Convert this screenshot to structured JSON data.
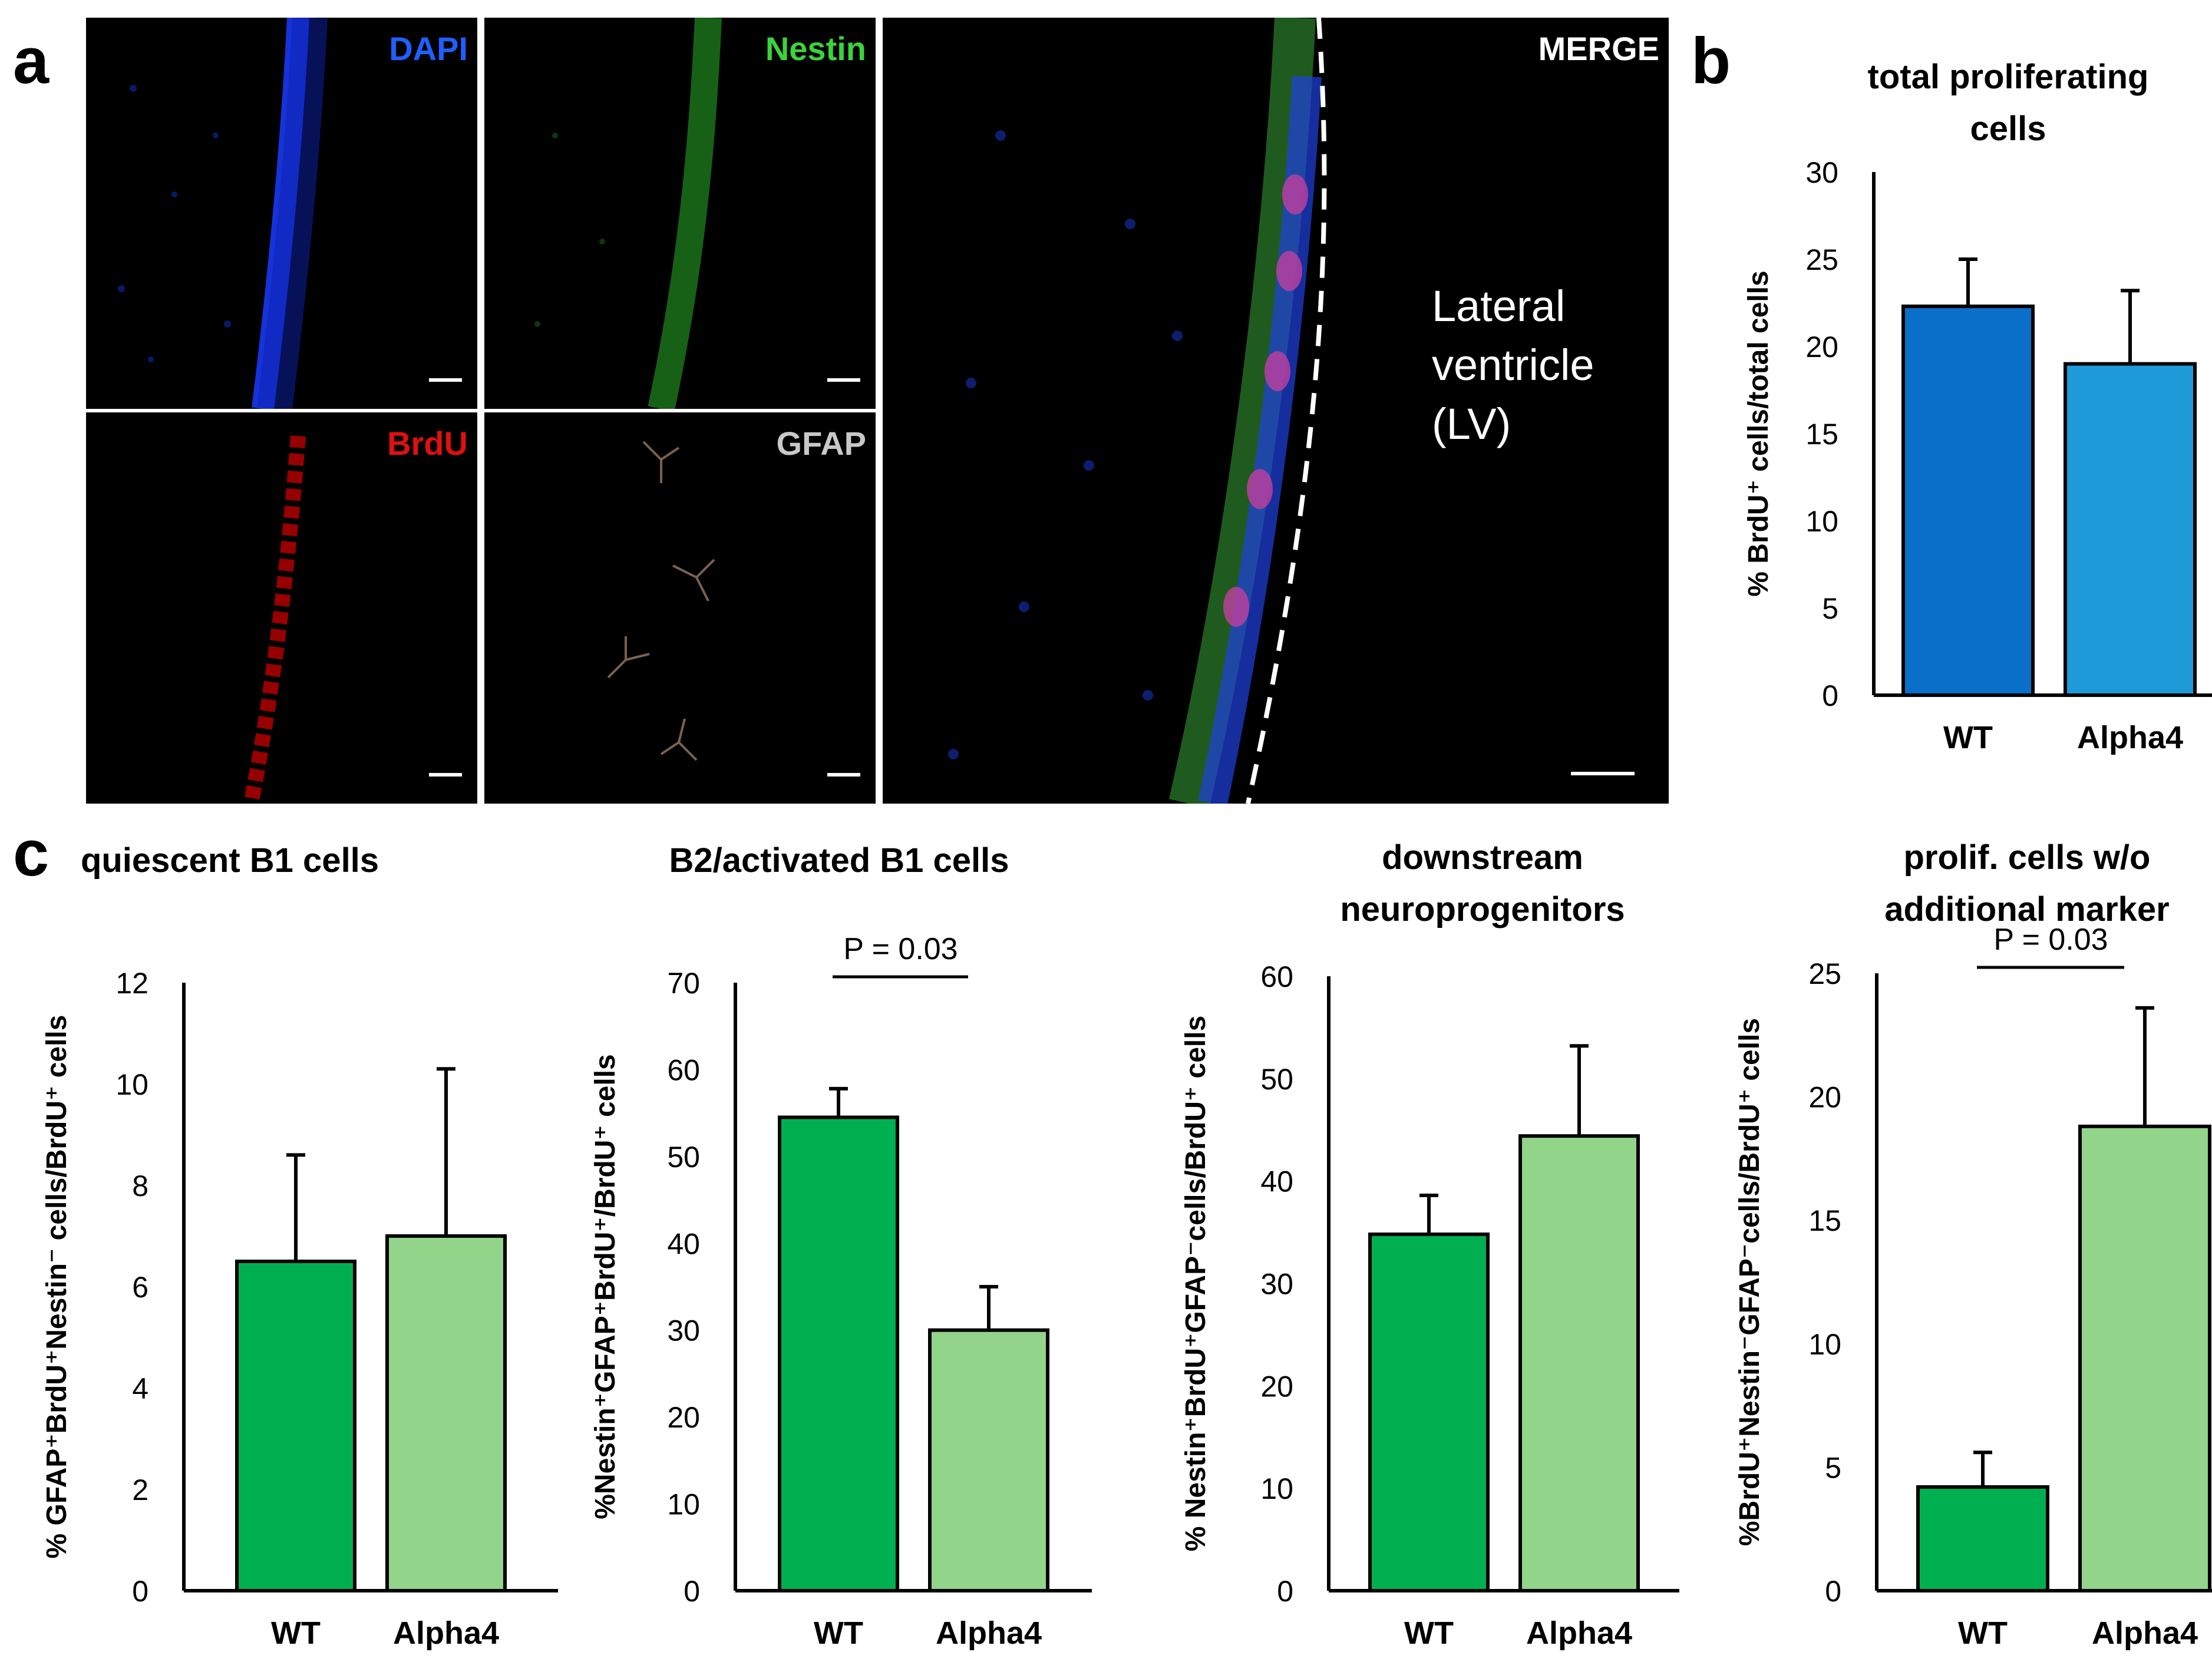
{
  "figure": {
    "panel_labels": {
      "a": "a",
      "b": "b",
      "c": "c"
    }
  },
  "micrographs": {
    "dapi": {
      "label": "DAPI",
      "color": "#1f5fff"
    },
    "nestin": {
      "label": "Nestin",
      "color": "#3cd23c"
    },
    "brdu": {
      "label": "BrdU",
      "color": "#e01010"
    },
    "gfap": {
      "label": "GFAP",
      "color": "#c8c8c8"
    },
    "merge": {
      "label": "MERGE",
      "color": "#ffffff",
      "annotation": [
        "Lateral",
        "ventricle",
        "(LV)"
      ]
    }
  },
  "chart_data": [
    {
      "id": "b",
      "type": "bar",
      "title": [
        "total proliferating",
        "cells"
      ],
      "ylabel": "% BrdU⁺ cells/total cells",
      "xlabel": "",
      "categories": [
        "WT",
        "Alpha4"
      ],
      "values": [
        22.3,
        19.0
      ],
      "errors": [
        2.7,
        4.2
      ],
      "colors": [
        "#0a6fc8",
        "#1f9ad8"
      ],
      "ylim": [
        0,
        30
      ],
      "yticks": [
        0,
        5,
        10,
        15,
        20,
        25,
        30
      ],
      "p_value": null
    },
    {
      "id": "c1",
      "type": "bar",
      "title": [
        "quiescent B1 cells"
      ],
      "ylabel": "% GFAP⁺BrdU⁺Nestin⁻ cells/BrdU⁺ cells",
      "xlabel": "",
      "categories": [
        "WT",
        "Alpha4"
      ],
      "values": [
        6.5,
        7.0
      ],
      "errors": [
        2.1,
        3.3
      ],
      "colors": [
        "#00b050",
        "#92d48a"
      ],
      "ylim": [
        0,
        12
      ],
      "yticks": [
        0,
        2,
        4,
        6,
        8,
        10,
        12
      ],
      "p_value": null
    },
    {
      "id": "c2",
      "type": "bar",
      "title": [
        "B2/activated B1 cells"
      ],
      "ylabel": "%Nestin⁺GFAP⁺BrdU⁺/BrdU⁺ cells",
      "xlabel": "",
      "categories": [
        "WT",
        "Alpha4"
      ],
      "values": [
        54.5,
        30.0
      ],
      "errors": [
        3.3,
        5.0
      ],
      "colors": [
        "#00b050",
        "#92d48a"
      ],
      "ylim": [
        0,
        70
      ],
      "yticks": [
        0,
        10,
        20,
        30,
        40,
        50,
        60,
        70
      ],
      "p_value": "P = 0.03"
    },
    {
      "id": "c3",
      "type": "bar",
      "title": [
        "downstream",
        "neuroprogenitors"
      ],
      "ylabel": "% Nestin⁺BrdU⁺GFAP⁻cells/BrdU⁺ cells",
      "xlabel": "",
      "categories": [
        "WT",
        "Alpha4"
      ],
      "values": [
        34.8,
        44.4
      ],
      "errors": [
        3.8,
        8.8
      ],
      "colors": [
        "#00b050",
        "#92d48a"
      ],
      "ylim": [
        0,
        60
      ],
      "yticks": [
        0,
        10,
        20,
        30,
        40,
        50,
        60
      ],
      "p_value": null
    },
    {
      "id": "c4",
      "type": "bar",
      "title": [
        "prolif. cells w/o",
        "additional marker"
      ],
      "ylabel": "%BrdU⁺Nestin⁻GFAP⁻cells/BrdU⁺ cells",
      "xlabel": "",
      "categories": [
        "WT",
        "Alpha4"
      ],
      "values": [
        4.2,
        18.8
      ],
      "errors": [
        1.4,
        4.8
      ],
      "colors": [
        "#00b050",
        "#92d48a"
      ],
      "ylim": [
        0,
        25
      ],
      "yticks": [
        0,
        5,
        10,
        15,
        20,
        25
      ],
      "p_value": "P = 0.03"
    }
  ]
}
